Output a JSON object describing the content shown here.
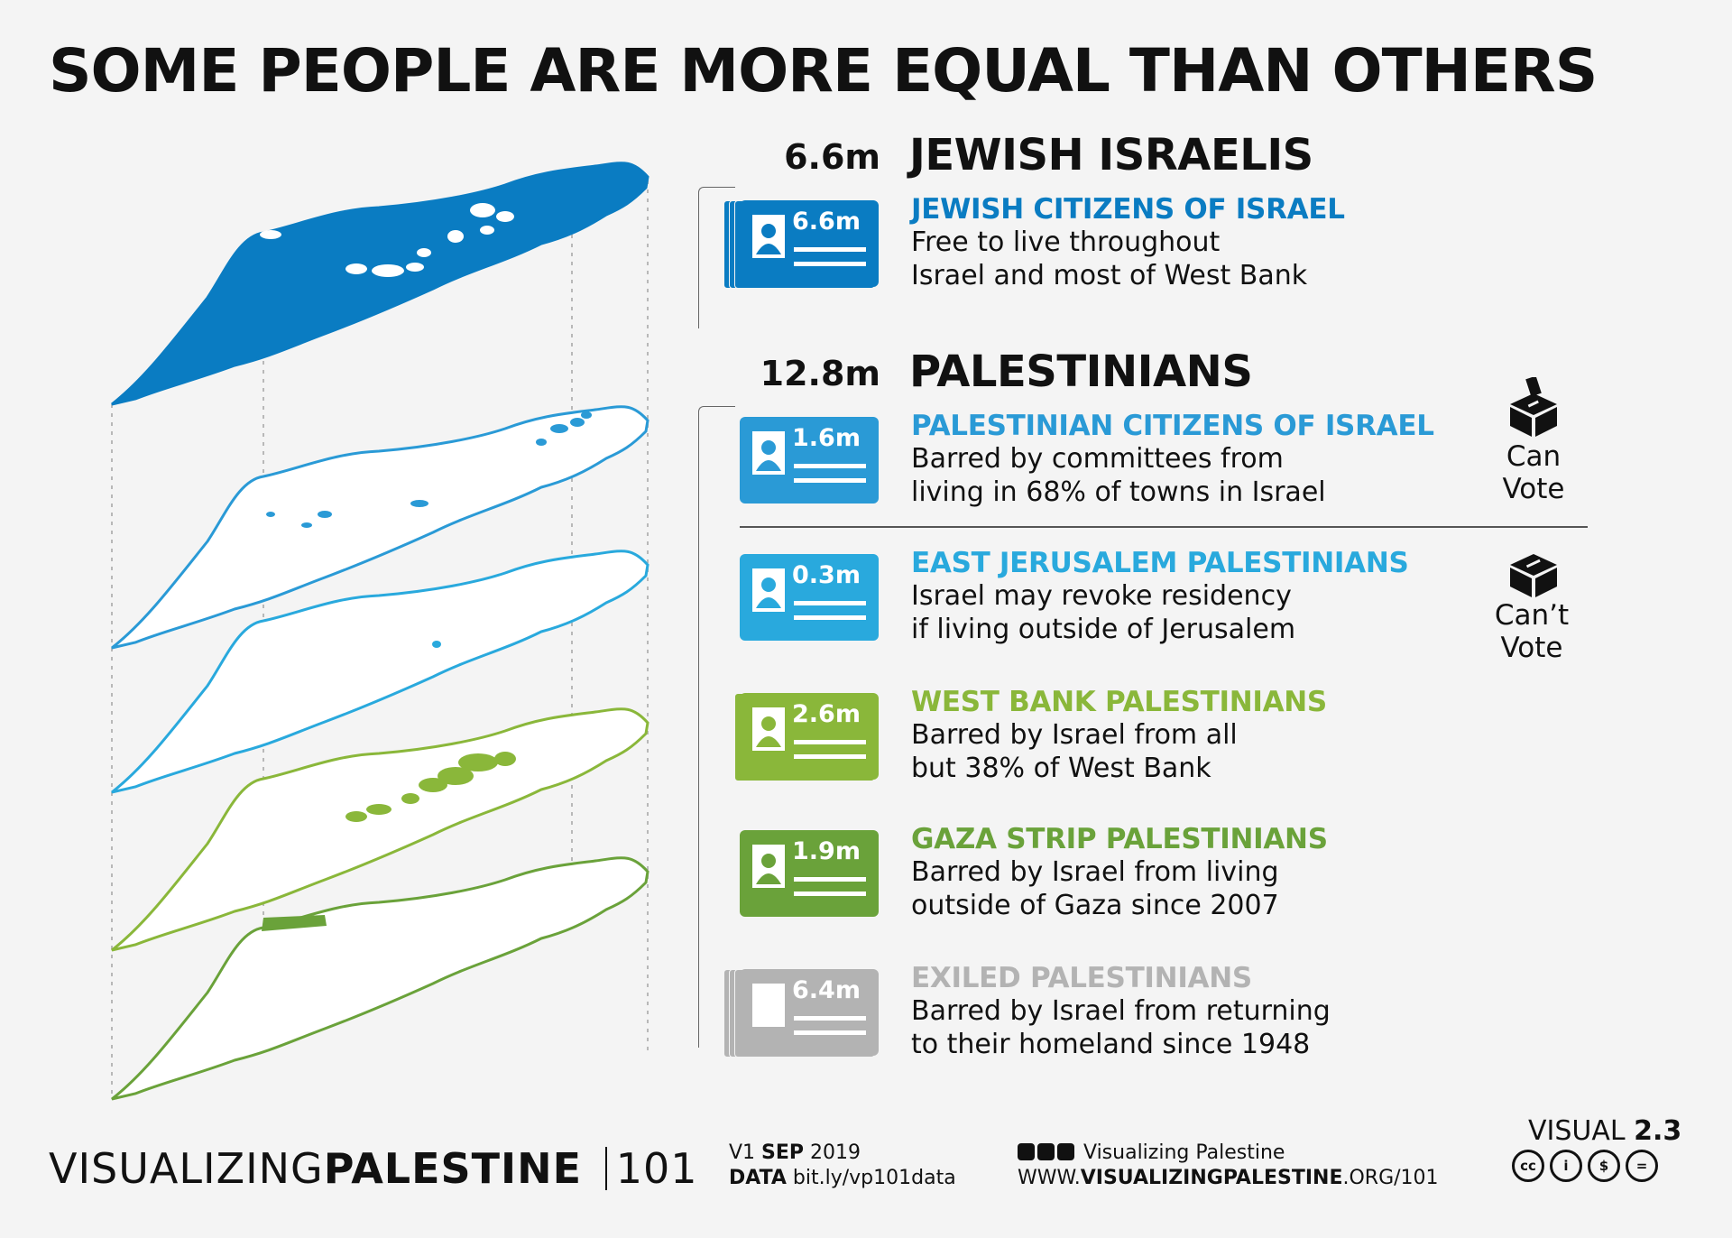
{
  "title": "SOME PEOPLE ARE MORE EQUAL THAN OTHERS",
  "colors": {
    "jewish": "#0a7cc2",
    "pal_citizens": "#2a9ad6",
    "east_jerusalem": "#29a9dd",
    "west_bank": "#8ab73a",
    "gaza": "#6aa23a",
    "exiled": "#b3b3b3"
  },
  "groups": {
    "jewish": {
      "population": "6.6m",
      "name": "JEWISH ISRAELIS"
    },
    "palestinians": {
      "population": "12.8m",
      "name": "PALESTINIANS"
    }
  },
  "subgroups": [
    {
      "card_value": "6.6m",
      "title": "JEWISH CITIZENS OF ISRAEL",
      "desc_line1": "Free to live throughout",
      "desc_line2": "Israel and most of West Bank",
      "color": "#0a7cc2",
      "card_stack": 4
    },
    {
      "card_value": "1.6m",
      "title": "PALESTINIAN CITIZENS OF ISRAEL",
      "desc_line1": "Barred by committees from",
      "desc_line2": "living in 68% of towns in Israel",
      "color": "#2a9ad6",
      "card_stack": 1
    },
    {
      "card_value": "0.3m",
      "title": "EAST JERUSALEM PALESTINIANS",
      "desc_line1": "Israel may revoke residency",
      "desc_line2": "if living outside of Jerusalem",
      "color": "#29a9dd",
      "card_stack": 1
    },
    {
      "card_value": "2.6m",
      "title": "WEST BANK PALESTINIANS",
      "desc_line1": "Barred by Israel from all",
      "desc_line2": "but 38% of West Bank",
      "color": "#8ab73a",
      "card_stack": 2
    },
    {
      "card_value": "1.9m",
      "title": "GAZA STRIP PALESTINIANS",
      "desc_line1": "Barred by Israel from living",
      "desc_line2": "outside of Gaza since 2007",
      "color": "#6aa23a",
      "card_stack": 1
    },
    {
      "card_value": "6.4m",
      "title": "EXILED PALESTINIANS",
      "desc_line1": "Barred by Israel from returning",
      "desc_line2": "to their homeland since 1948",
      "color": "#b3b3b3",
      "card_stack": 4
    }
  ],
  "voting": {
    "can": {
      "line1": "Can",
      "line2": "Vote",
      "icon": "ballot-box-icon"
    },
    "cant": {
      "line1": "Can’t",
      "line2": "Vote",
      "icon": "ballot-box-icon"
    }
  },
  "footer": {
    "brand_light": "VISUALIZING",
    "brand_bold": "PALESTINE",
    "brand_suffix": "101",
    "version_prefix": "V1",
    "version_month": "SEP",
    "version_year": "2019",
    "data_label": "DATA",
    "data_url": "bit.ly/vp101data",
    "social_name": "Visualizing Palestine",
    "social_icons": [
      "instagram-icon",
      "twitter-icon",
      "facebook-icon"
    ],
    "site_prefix": "WWW.",
    "site_bold": "VISUALIZINGPALESTINE",
    "site_suffix": ".ORG/101",
    "visual_label": "VISUAL",
    "visual_number": "2.3",
    "license_icons": [
      "cc-icon",
      "by-icon",
      "nc-icon",
      "nd-icon"
    ]
  }
}
